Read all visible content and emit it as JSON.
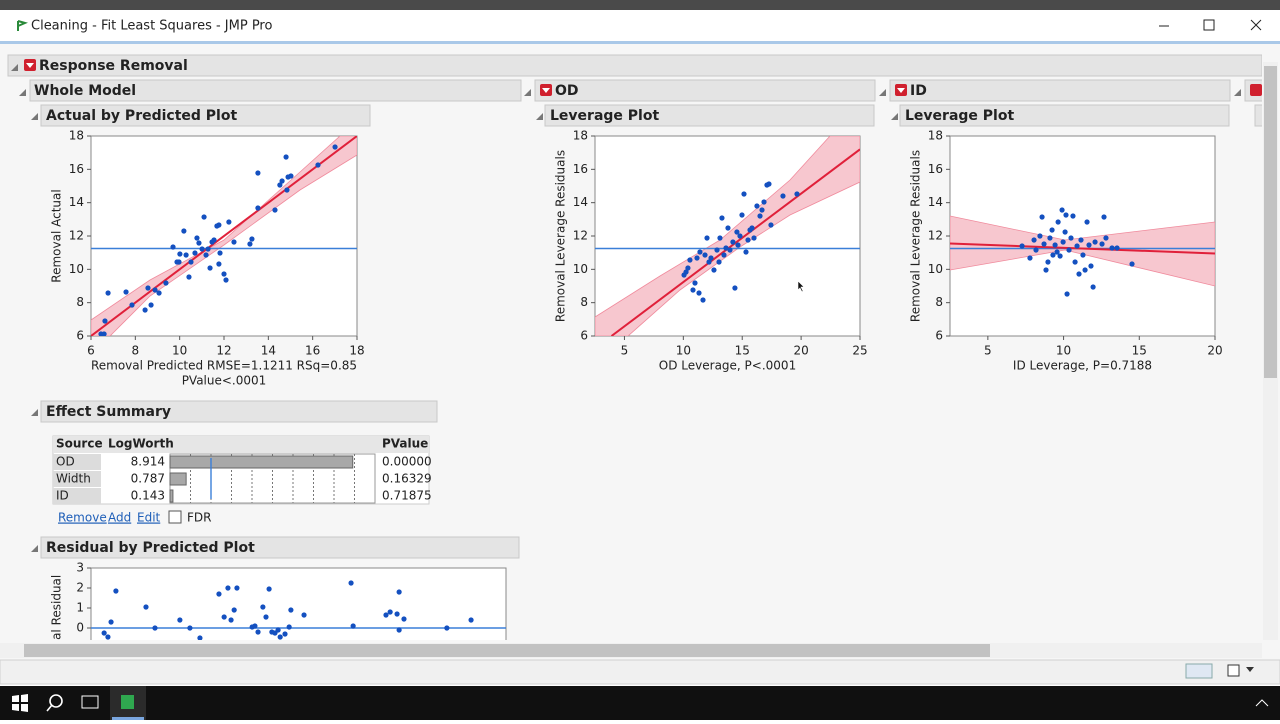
{
  "window": {
    "title": "Cleaning - Fit Least Squares - JMP Pro"
  },
  "report": {
    "title": "Response Removal",
    "columns": [
      "Whole Model",
      "OD",
      "ID"
    ],
    "plot_titles": [
      "Actual by Predicted Plot",
      "Leverage Plot",
      "Leverage Plot"
    ]
  },
  "plots": [
    {
      "type": "scatter",
      "ylabel": "Removal Actual",
      "xlabel": "Removal Predicted RMSE=1.1211 RSq=0.85",
      "xlabel2": "PValue<.0001",
      "xlim": [
        6,
        18
      ],
      "ylim": [
        6,
        18
      ],
      "xticks": [
        6,
        8,
        10,
        12,
        14,
        16,
        18
      ],
      "yticks": [
        6,
        8,
        10,
        12,
        14,
        16,
        18
      ],
      "mean": 11.25,
      "fit": {
        "x": [
          6,
          18
        ],
        "y": [
          6,
          18
        ]
      },
      "x": [
        6.45,
        6.59,
        6.63,
        6.77,
        7.58,
        7.85,
        8.44,
        8.57,
        8.71,
        8.89,
        9.07,
        9.38,
        9.7,
        9.88,
        9.97,
        10.01,
        10.19,
        10.29,
        10.42,
        10.51,
        10.69,
        10.78,
        10.87,
        11.01,
        11.1,
        11.19,
        11.28,
        11.37,
        11.46,
        11.55,
        11.68,
        11.77,
        11.77,
        11.82,
        12.0,
        12.09,
        12.22,
        12.45,
        13.17,
        13.26,
        13.53,
        13.53,
        14.3,
        14.52,
        14.62,
        14.8,
        14.84,
        14.89,
        15.02,
        16.24,
        17.01
      ],
      "y": [
        6.12,
        6.12,
        6.9,
        8.58,
        8.64,
        7.86,
        7.56,
        8.88,
        7.86,
        8.76,
        8.58,
        9.18,
        11.34,
        10.44,
        10.44,
        10.92,
        12.3,
        10.86,
        9.54,
        10.44,
        10.98,
        11.88,
        11.58,
        11.22,
        13.14,
        10.86,
        11.22,
        10.08,
        11.64,
        11.76,
        12.6,
        12.66,
        10.32,
        10.98,
        9.72,
        9.36,
        12.84,
        11.64,
        11.52,
        11.82,
        15.78,
        13.68,
        13.56,
        15.06,
        15.3,
        16.74,
        14.76,
        15.54,
        15.6,
        16.26,
        17.34
      ]
    },
    {
      "type": "scatter",
      "ylabel": "Removal Leverage Residuals",
      "xlabel": "OD Leverage, P<.0001",
      "xlim": [
        2.5,
        25
      ],
      "ylim": [
        6,
        18
      ],
      "xticks": [
        5,
        10,
        15,
        20,
        25
      ],
      "yticks": [
        6,
        8,
        10,
        12,
        14,
        16,
        18
      ],
      "mean": 11.25,
      "fit": {
        "x": [
          3.9,
          25
        ],
        "y": [
          6,
          17.2
        ]
      },
      "x": [
        10.06,
        10.23,
        10.39,
        10.56,
        10.82,
        10.99,
        11.16,
        11.33,
        11.41,
        11.67,
        11.84,
        12.01,
        12.18,
        12.35,
        12.6,
        12.86,
        13.03,
        13.11,
        13.28,
        13.45,
        13.62,
        13.79,
        13.96,
        14.21,
        14.38,
        14.55,
        14.64,
        14.81,
        14.98,
        15.15,
        15.32,
        15.49,
        15.66,
        15.83,
        16.0,
        16.25,
        16.51,
        16.68,
        16.85,
        17.1,
        17.27,
        17.44,
        18.46,
        19.65
      ],
      "y": [
        9.66,
        9.84,
        10.08,
        10.56,
        8.76,
        9.18,
        10.68,
        8.58,
        11.04,
        8.16,
        10.86,
        11.88,
        10.44,
        10.68,
        9.96,
        11.16,
        10.44,
        11.88,
        13.08,
        10.86,
        11.28,
        12.48,
        11.16,
        11.64,
        8.88,
        12.24,
        11.46,
        12.0,
        13.26,
        14.52,
        11.04,
        11.76,
        12.36,
        12.48,
        11.88,
        13.8,
        13.2,
        13.56,
        14.04,
        15.06,
        15.12,
        12.66,
        14.4,
        14.52
      ]
    },
    {
      "type": "scatter",
      "ylabel": "Removal Leverage Residuals",
      "xlabel": "ID Leverage, P=0.7188",
      "xlim": [
        2.5,
        20
      ],
      "ylim": [
        6,
        18
      ],
      "xticks": [
        5,
        10,
        15,
        20
      ],
      "yticks": [
        6,
        8,
        10,
        12,
        14,
        16,
        18
      ],
      "mean": 11.25,
      "fit": {
        "x": [
          2.5,
          20
        ],
        "y": [
          11.55,
          10.95
        ]
      },
      "x": [
        7.26,
        7.78,
        8.05,
        8.18,
        8.44,
        8.58,
        8.71,
        8.84,
        8.97,
        9.1,
        9.24,
        9.3,
        9.44,
        9.57,
        9.64,
        9.77,
        9.9,
        9.97,
        10.1,
        10.16,
        10.23,
        10.36,
        10.49,
        10.62,
        10.76,
        10.89,
        11.02,
        11.15,
        11.28,
        11.42,
        11.55,
        11.68,
        11.81,
        11.95,
        12.08,
        12.54,
        12.67,
        12.8,
        13.2,
        13.53,
        14.52
      ],
      "y": [
        11.4,
        10.68,
        11.76,
        11.16,
        12.0,
        13.14,
        11.52,
        9.96,
        10.44,
        11.88,
        12.36,
        10.86,
        11.46,
        11.04,
        12.84,
        10.8,
        13.56,
        11.64,
        12.24,
        13.26,
        8.52,
        11.16,
        11.88,
        13.2,
        10.44,
        11.4,
        9.72,
        11.76,
        10.86,
        9.96,
        12.84,
        11.46,
        10.2,
        8.94,
        11.64,
        11.52,
        13.14,
        11.88,
        11.28,
        11.28,
        10.32
      ]
    }
  ],
  "effect_summary": {
    "title": "Effect Summary",
    "headers": [
      "Source",
      "LogWorth",
      "PValue"
    ],
    "sources": [
      "OD",
      "Width",
      "ID"
    ],
    "logworth": [
      8.914,
      0.787,
      0.143
    ],
    "pvalues": [
      "0.00000",
      "0.16329",
      "0.71875"
    ],
    "xlim": [
      0,
      10
    ],
    "reference": 2,
    "links": [
      "Remove",
      "Add",
      "Edit"
    ],
    "checkbox": "FDR"
  },
  "residual_plot": {
    "title": "Residual by Predicted Plot",
    "ylabel": "Removal Residual",
    "xlim": [
      6,
      18
    ],
    "ylim": [
      -3,
      3
    ],
    "yticks": [
      3,
      2,
      1,
      0
    ],
    "reference": 0,
    "x": [
      6.38,
      6.49,
      6.58,
      6.72,
      7.59,
      7.85,
      8.57,
      8.86,
      9.15,
      9.7,
      9.85,
      9.96,
      10.05,
      10.14,
      10.22,
      10.66,
      10.74,
      10.83,
      10.97,
      11.06,
      11.15,
      11.23,
      11.32,
      11.41,
      11.47,
      11.61,
      11.73,
      11.78,
      12.16,
      13.52,
      13.58,
      14.53,
      14.65,
      14.85,
      14.91,
      14.91,
      15.05,
      16.29,
      16.99
    ],
    "y": [
      -0.25,
      -0.45,
      0.3,
      1.85,
      1.05,
      0,
      0.4,
      0,
      -0.5,
      1.7,
      0.55,
      2.0,
      0.4,
      0.9,
      2.0,
      0.05,
      0.1,
      -0.2,
      1.05,
      0.55,
      1.95,
      -0.2,
      -0.25,
      -0.1,
      -0.45,
      -0.3,
      0.05,
      0.9,
      0.65,
      2.25,
      0.1,
      0.65,
      0.8,
      0.7,
      1.8,
      -0.1,
      0.45,
      0,
      0.4
    ]
  }
}
